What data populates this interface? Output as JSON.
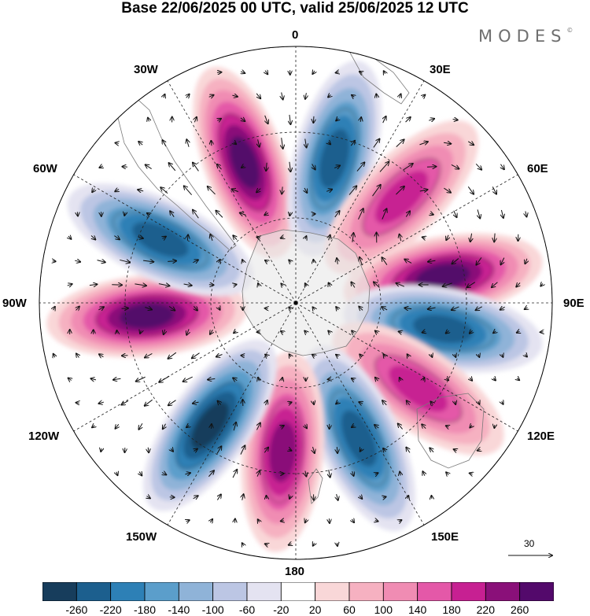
{
  "title": "Base 22/06/2025 00 UTC, valid 25/06/2025 12 UTC",
  "brand": "MODES",
  "brand_mark": "©",
  "longitude_labels": {
    "lon_0": "0",
    "lon_30e": "30E",
    "lon_60e": "60E",
    "lon_90e": "90E",
    "lon_120e": "120E",
    "lon_150e": "150E",
    "lon_180": "180",
    "lon_150w": "150W",
    "lon_120w": "120W",
    "lon_90w": "90W",
    "lon_60w": "60W",
    "lon_30w": "30W"
  },
  "reference_vector": {
    "value": "30"
  },
  "colorbar": {
    "ticks": [
      "-260",
      "-220",
      "-180",
      "-140",
      "-100",
      "-60",
      "-20",
      "20",
      "60",
      "100",
      "140",
      "180",
      "220",
      "260"
    ],
    "colors": [
      "#173d5c",
      "#1c5f8e",
      "#2d80b6",
      "#5b9ecb",
      "#8fb3d8",
      "#bcc6e4",
      "#e4e3f1",
      "#ffffff",
      "#f9d7d8",
      "#f6b1c1",
      "#f08cb3",
      "#e458a8",
      "#c72092",
      "#8a1079",
      "#53096b"
    ]
  },
  "anomaly_lobes": [
    {
      "sign": "positive",
      "center_lon": "20W",
      "peak_class": "220-260"
    },
    {
      "sign": "negative",
      "center_lon": "15E",
      "peak_class": "-220 to -180"
    },
    {
      "sign": "positive",
      "center_lon": "45E",
      "peak_class": "140-180"
    },
    {
      "sign": "positive",
      "center_lon": "80E",
      "peak_class": "220-260"
    },
    {
      "sign": "negative",
      "center_lon": "100E",
      "peak_class": "-220 to -180"
    },
    {
      "sign": "positive",
      "center_lon": "125E",
      "peak_class": "140-180"
    },
    {
      "sign": "negative",
      "center_lon": "155E",
      "peak_class": "-220 to -180"
    },
    {
      "sign": "positive",
      "center_lon": "175W",
      "peak_class": "180-220"
    },
    {
      "sign": "negative",
      "center_lon": "145W",
      "peak_class": "-260 to -220"
    },
    {
      "sign": "positive",
      "center_lon": "95W",
      "peak_class": "220-260"
    },
    {
      "sign": "negative",
      "center_lon": "65W",
      "peak_class": "-220 to -180"
    }
  ]
}
